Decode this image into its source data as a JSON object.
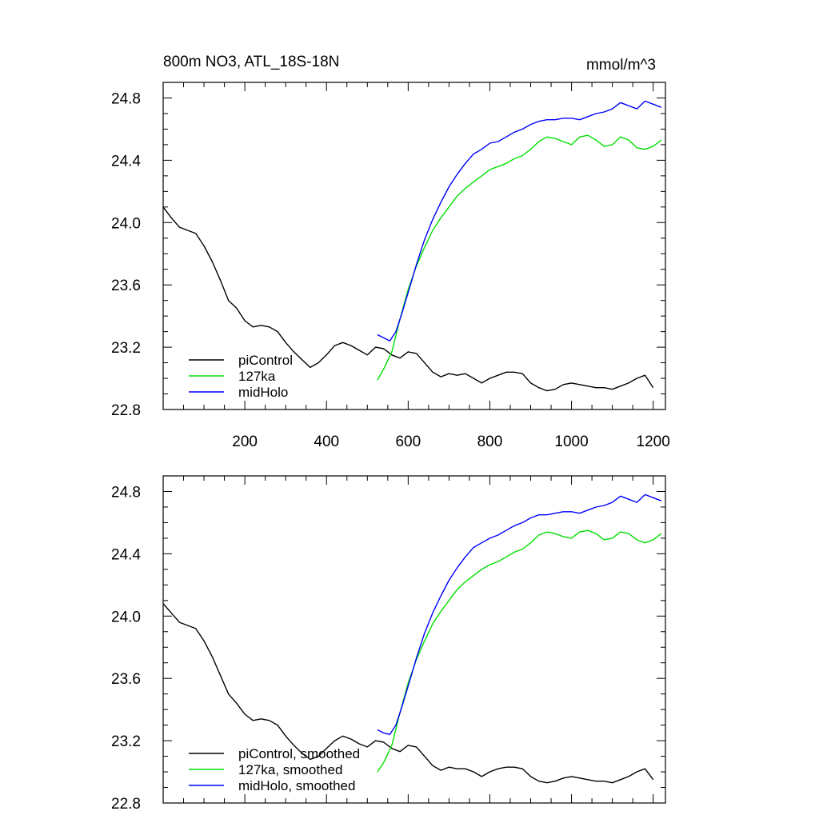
{
  "chart_data": [
    {
      "type": "line",
      "title": "800m NO3, ATL_18S-18N",
      "units": "mmol/m^3",
      "xlim": [
        0,
        1230
      ],
      "ylim": [
        22.8,
        24.9
      ],
      "xticks": [
        200,
        400,
        600,
        800,
        1000,
        1200
      ],
      "xtick_labels": [
        "200",
        "400",
        "600",
        "800",
        "1000",
        "1200"
      ],
      "yticks": [
        22.8,
        23.2,
        23.6,
        24.0,
        24.4,
        24.8
      ],
      "ytick_labels": [
        "22.8",
        "23.2",
        "23.6",
        "24.0",
        "24.4",
        "24.8"
      ],
      "legend_position": "lower-left",
      "series": [
        {
          "name": "piControl",
          "color": "#000000",
          "x": [
            0,
            20,
            40,
            60,
            80,
            100,
            120,
            140,
            160,
            180,
            200,
            220,
            240,
            260,
            280,
            300,
            320,
            340,
            360,
            380,
            400,
            420,
            440,
            460,
            480,
            500,
            520,
            540,
            560,
            580,
            600,
            620,
            640,
            660,
            680,
            700,
            720,
            740,
            760,
            780,
            800,
            820,
            840,
            860,
            880,
            900,
            920,
            940,
            960,
            980,
            1000,
            1020,
            1040,
            1060,
            1080,
            1100,
            1120,
            1140,
            1160,
            1180,
            1200
          ],
          "values": [
            24.1,
            24.03,
            23.97,
            23.95,
            23.93,
            23.85,
            23.75,
            23.63,
            23.5,
            23.45,
            23.37,
            23.33,
            23.34,
            23.33,
            23.3,
            23.23,
            23.17,
            23.12,
            23.07,
            23.1,
            23.15,
            23.21,
            23.23,
            23.21,
            23.18,
            23.15,
            23.2,
            23.19,
            23.15,
            23.13,
            23.17,
            23.16,
            23.1,
            23.04,
            23.01,
            23.03,
            23.02,
            23.03,
            23.0,
            22.97,
            23.0,
            23.02,
            23.04,
            23.04,
            23.03,
            22.97,
            22.94,
            22.92,
            22.93,
            22.96,
            22.97,
            22.96,
            22.95,
            22.94,
            22.94,
            22.93,
            22.95,
            22.97,
            23.0,
            23.02,
            22.94
          ]
        },
        {
          "name": "127ka",
          "color": "#00e000",
          "x": [
            525,
            540,
            560,
            580,
            600,
            620,
            640,
            660,
            680,
            700,
            720,
            740,
            760,
            780,
            800,
            820,
            840,
            860,
            880,
            900,
            920,
            940,
            960,
            980,
            1000,
            1020,
            1040,
            1060,
            1080,
            1100,
            1120,
            1140,
            1160,
            1180,
            1200,
            1220
          ],
          "values": [
            22.99,
            23.06,
            23.17,
            23.38,
            23.57,
            23.72,
            23.84,
            23.95,
            24.03,
            24.1,
            24.17,
            24.22,
            24.26,
            24.3,
            24.34,
            24.36,
            24.38,
            24.41,
            24.43,
            24.47,
            24.52,
            24.55,
            24.54,
            24.52,
            24.5,
            24.55,
            24.56,
            24.53,
            24.49,
            24.5,
            24.55,
            24.53,
            24.48,
            24.47,
            24.49,
            24.53
          ]
        },
        {
          "name": "midHolo",
          "color": "#0000ff",
          "x": [
            525,
            540,
            555,
            570,
            585,
            600,
            620,
            640,
            660,
            680,
            700,
            720,
            740,
            760,
            780,
            800,
            820,
            840,
            860,
            880,
            900,
            920,
            940,
            960,
            980,
            1000,
            1020,
            1040,
            1060,
            1080,
            1100,
            1120,
            1140,
            1160,
            1180,
            1200,
            1220
          ],
          "values": [
            23.28,
            23.26,
            23.24,
            23.3,
            23.42,
            23.55,
            23.73,
            23.89,
            24.02,
            24.13,
            24.23,
            24.31,
            24.38,
            24.44,
            24.47,
            24.51,
            24.52,
            24.55,
            24.58,
            24.6,
            24.63,
            24.65,
            24.66,
            24.66,
            24.67,
            24.67,
            24.66,
            24.68,
            24.7,
            24.71,
            24.73,
            24.77,
            24.75,
            24.73,
            24.78,
            24.76,
            24.74
          ]
        }
      ]
    },
    {
      "type": "line",
      "title": "",
      "xlim": [
        0,
        1230
      ],
      "ylim": [
        22.8,
        24.9
      ],
      "xticks": [
        200,
        400,
        600,
        800,
        1000,
        1200
      ],
      "yticks": [
        22.8,
        23.2,
        23.6,
        24.0,
        24.4,
        24.8
      ],
      "ytick_labels": [
        "22.8",
        "23.2",
        "23.6",
        "24.0",
        "24.4",
        "24.8"
      ],
      "legend_position": "lower-left",
      "series": [
        {
          "name": "piControl, smoothed",
          "color": "#000000",
          "x": [
            0,
            20,
            40,
            60,
            80,
            100,
            120,
            140,
            160,
            180,
            200,
            220,
            240,
            260,
            280,
            300,
            320,
            340,
            360,
            380,
            400,
            420,
            440,
            460,
            480,
            500,
            520,
            540,
            560,
            580,
            600,
            620,
            640,
            660,
            680,
            700,
            720,
            740,
            760,
            780,
            800,
            820,
            840,
            860,
            880,
            900,
            920,
            940,
            960,
            980,
            1000,
            1020,
            1040,
            1060,
            1080,
            1100,
            1120,
            1140,
            1160,
            1180,
            1200
          ],
          "values": [
            24.08,
            24.02,
            23.96,
            23.94,
            23.92,
            23.84,
            23.74,
            23.62,
            23.5,
            23.44,
            23.37,
            23.33,
            23.34,
            23.33,
            23.3,
            23.23,
            23.17,
            23.12,
            23.08,
            23.1,
            23.15,
            23.2,
            23.23,
            23.21,
            23.18,
            23.16,
            23.2,
            23.19,
            23.15,
            23.13,
            23.17,
            23.16,
            23.1,
            23.04,
            23.01,
            23.03,
            23.02,
            23.02,
            23.0,
            22.97,
            23.0,
            23.02,
            23.03,
            23.03,
            23.02,
            22.97,
            22.94,
            22.93,
            22.94,
            22.96,
            22.97,
            22.96,
            22.95,
            22.94,
            22.94,
            22.93,
            22.95,
            22.97,
            23.0,
            23.02,
            22.95
          ]
        },
        {
          "name": "127ka, smoothed",
          "color": "#00e000",
          "x": [
            525,
            540,
            560,
            580,
            600,
            620,
            640,
            660,
            680,
            700,
            720,
            740,
            760,
            780,
            800,
            820,
            840,
            860,
            880,
            900,
            920,
            940,
            960,
            980,
            1000,
            1020,
            1040,
            1060,
            1080,
            1100,
            1120,
            1140,
            1160,
            1180,
            1200,
            1220
          ],
          "values": [
            23.0,
            23.06,
            23.17,
            23.38,
            23.57,
            23.72,
            23.84,
            23.95,
            24.03,
            24.1,
            24.17,
            24.22,
            24.26,
            24.3,
            24.33,
            24.35,
            24.38,
            24.41,
            24.43,
            24.47,
            24.52,
            24.54,
            24.53,
            24.51,
            24.5,
            24.54,
            24.55,
            24.53,
            24.49,
            24.5,
            24.54,
            24.53,
            24.49,
            24.47,
            24.49,
            24.53
          ]
        },
        {
          "name": "midHolo, smoothed",
          "color": "#0000ff",
          "x": [
            525,
            540,
            555,
            570,
            585,
            600,
            620,
            640,
            660,
            680,
            700,
            720,
            740,
            760,
            780,
            800,
            820,
            840,
            860,
            880,
            900,
            920,
            940,
            960,
            980,
            1000,
            1020,
            1040,
            1060,
            1080,
            1100,
            1120,
            1140,
            1160,
            1180,
            1200,
            1220
          ],
          "values": [
            23.27,
            23.25,
            23.24,
            23.3,
            23.42,
            23.55,
            23.73,
            23.89,
            24.02,
            24.13,
            24.23,
            24.31,
            24.38,
            24.44,
            24.47,
            24.5,
            24.52,
            24.55,
            24.58,
            24.6,
            24.63,
            24.65,
            24.65,
            24.66,
            24.67,
            24.67,
            24.66,
            24.68,
            24.7,
            24.71,
            24.73,
            24.77,
            24.75,
            24.73,
            24.78,
            24.76,
            24.74
          ]
        }
      ]
    }
  ]
}
